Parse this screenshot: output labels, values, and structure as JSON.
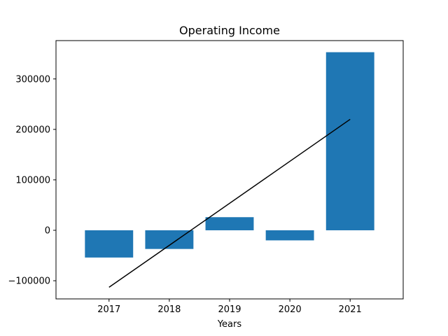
{
  "chart_data": {
    "type": "bar",
    "title": "Operating Income",
    "xlabel": "Years",
    "ylabel": "",
    "categories": [
      "2017",
      "2018",
      "2019",
      "2020",
      "2021"
    ],
    "values": [
      -54000,
      -37000,
      26000,
      -20000,
      353000
    ],
    "trendline": {
      "x": [
        "2017",
        "2021"
      ],
      "y": [
        -113000,
        220000
      ],
      "color": "#000000"
    },
    "yticks": [
      -100000,
      0,
      100000,
      200000,
      300000
    ],
    "ylim": [
      -136000,
      376000
    ],
    "bar_color": "#1f77b4",
    "grid": false,
    "legend": "none"
  }
}
